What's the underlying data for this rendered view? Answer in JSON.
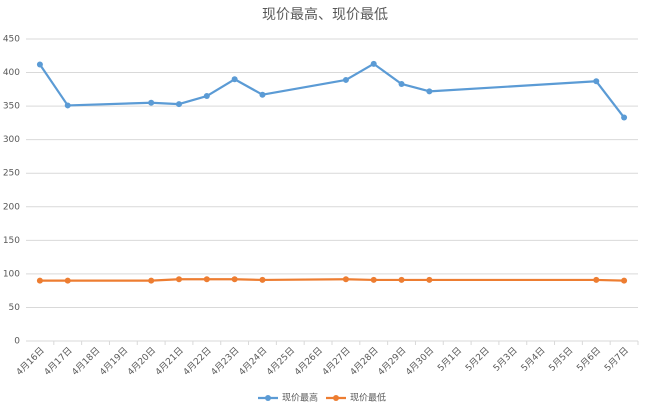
{
  "chart_data": {
    "type": "line",
    "title": "现价最高、现价最低",
    "categories": [
      "4月16日",
      "4月17日",
      "4月18日",
      "4月19日",
      "4月20日",
      "4月21日",
      "4月22日",
      "4月23日",
      "4月24日",
      "4月25日",
      "4月26日",
      "4月27日",
      "4月28日",
      "4月29日",
      "4月30日",
      "5月1日",
      "5月2日",
      "5月3日",
      "5月4日",
      "5月5日",
      "5月6日",
      "5月7日"
    ],
    "series": [
      {
        "name": "现价最高",
        "color": "#5b9bd5",
        "values": [
          412,
          351,
          null,
          null,
          355,
          353,
          365,
          390,
          367,
          null,
          null,
          389,
          413,
          383,
          372,
          null,
          null,
          null,
          null,
          null,
          387,
          333
        ]
      },
      {
        "name": "现价最低",
        "color": "#ed7d31",
        "values": [
          90,
          90,
          null,
          null,
          90,
          92,
          92,
          92,
          91,
          null,
          null,
          92,
          91,
          91,
          91,
          null,
          null,
          null,
          null,
          null,
          91,
          90
        ]
      }
    ],
    "connect_gaps": true,
    "ylim": [
      0,
      450
    ],
    "yticks": [
      0,
      50,
      100,
      150,
      200,
      250,
      300,
      350,
      400,
      450
    ],
    "grid": true,
    "legend": "bottom"
  }
}
